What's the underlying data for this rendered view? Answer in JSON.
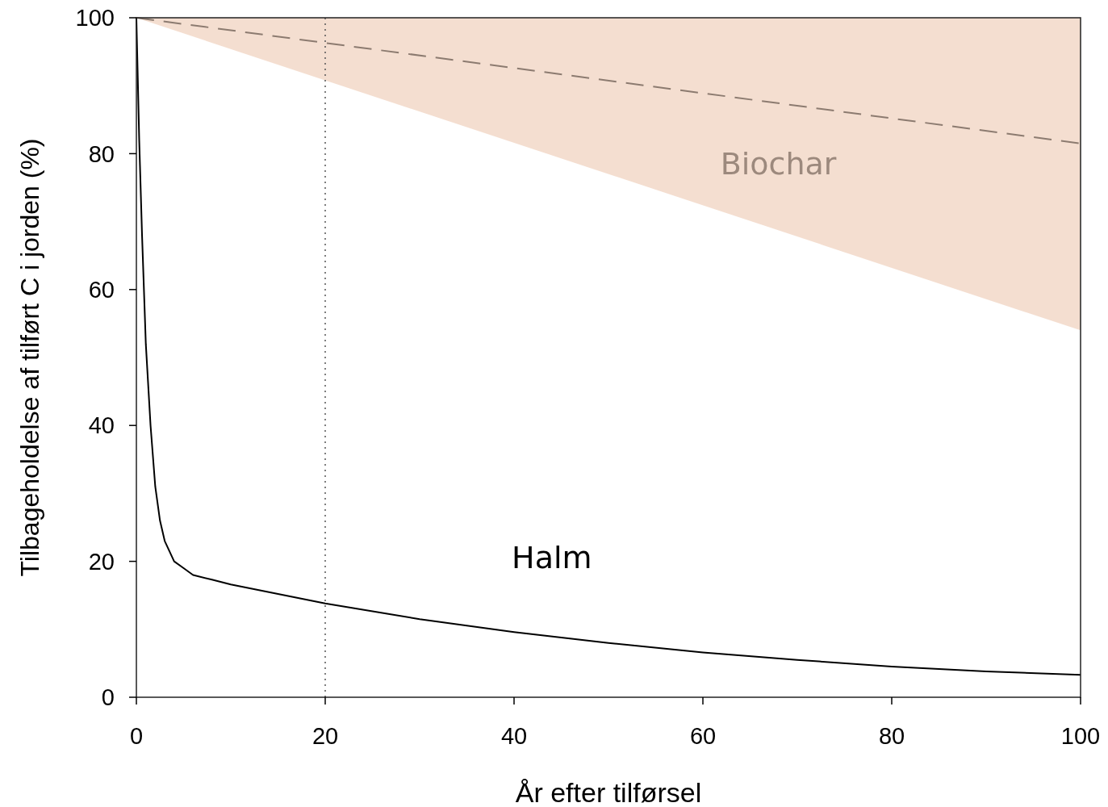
{
  "chart_data": {
    "type": "line",
    "xlabel": "År efter tilførsel",
    "ylabel": "Tilbageholdelse af tilført C i jorden (%)",
    "xlim": [
      0,
      100
    ],
    "ylim": [
      0,
      100
    ],
    "xticks": [
      0,
      20,
      40,
      60,
      80,
      100
    ],
    "yticks": [
      0,
      20,
      40,
      60,
      80,
      100
    ],
    "grid": false,
    "marker": "none",
    "series": [
      {
        "name": "Biochar",
        "line_style": "dashed",
        "color": "#8c7b70",
        "x": [
          0,
          100
        ],
        "values": [
          100,
          81.5
        ],
        "lower": [
          100,
          54
        ],
        "upper": [
          100,
          100
        ]
      },
      {
        "name": "Halm",
        "line_style": "solid",
        "color": "#000000",
        "x": [
          0,
          0.3,
          0.6,
          1,
          1.5,
          2,
          2.5,
          3,
          4,
          5,
          6,
          8,
          10,
          15,
          20,
          30,
          40,
          50,
          60,
          70,
          80,
          90,
          100
        ],
        "values": [
          100,
          82,
          68,
          52,
          40,
          31,
          26,
          23,
          20,
          19,
          18,
          17.3,
          16.6,
          15.2,
          13.8,
          11.5,
          9.6,
          8,
          6.6,
          5.5,
          4.5,
          3.8,
          3.3
        ]
      }
    ],
    "ref_lines": [
      {
        "axis": "x",
        "value": 20,
        "line_style": "dotted",
        "color": "#555555"
      }
    ]
  }
}
